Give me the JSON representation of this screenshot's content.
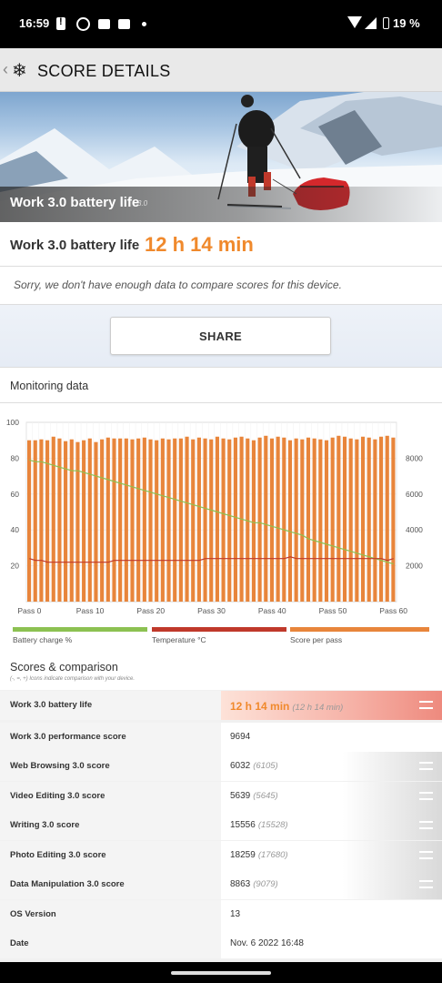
{
  "status_bar": {
    "time": "16:59",
    "battery": "19 %"
  },
  "app_bar": {
    "title": "SCORE DETAILS"
  },
  "hero": {
    "title": "Work 3.0 battery life",
    "version": "3.0"
  },
  "result": {
    "label": "Work 3.0 battery life",
    "value": "12 h 14 min"
  },
  "notice": "Sorry, we don't have enough data to compare scores for this device.",
  "share_label": "SHARE",
  "monitoring": {
    "title": "Monitoring data"
  },
  "legend": [
    {
      "label": "Battery charge %",
      "color": "#8cc152"
    },
    {
      "label": "Temperature °C",
      "color": "#c0392b"
    },
    {
      "label": "Score per pass",
      "color": "#e8853b"
    }
  ],
  "chart_data": {
    "type": "bar",
    "x_tick_labels": [
      "Pass 0",
      "Pass 10",
      "Pass 20",
      "Pass 30",
      "Pass 40",
      "Pass 50",
      "Pass 60"
    ],
    "left_axis": {
      "ticks": [
        "20",
        "40",
        "60",
        "80",
        "100"
      ],
      "range": [
        0,
        100
      ]
    },
    "right_axis": {
      "ticks": [
        "2000",
        "4000",
        "6000",
        "8000"
      ],
      "range": [
        0,
        10000
      ]
    },
    "series": [
      {
        "name": "Score per pass",
        "type": "bar",
        "axis": "right",
        "color": "#e8853b",
        "values": [
          9000,
          9000,
          9050,
          9000,
          9200,
          9100,
          8950,
          9050,
          8900,
          9000,
          9100,
          8900,
          9050,
          9150,
          9100,
          9100,
          9100,
          9050,
          9100,
          9150,
          9050,
          9000,
          9100,
          9050,
          9100,
          9100,
          9200,
          9050,
          9150,
          9100,
          9050,
          9200,
          9100,
          9050,
          9150,
          9200,
          9100,
          9000,
          9150,
          9250,
          9100,
          9200,
          9150,
          9000,
          9100,
          9050,
          9150,
          9100,
          9050,
          9000,
          9150,
          9250,
          9200,
          9100,
          9050,
          9200,
          9150,
          9050,
          9200,
          9250,
          9150
        ]
      },
      {
        "name": "Battery charge %",
        "type": "line",
        "axis": "left",
        "color": "#8cc152",
        "values": [
          79,
          78,
          78,
          77,
          76,
          75,
          74,
          73,
          73,
          72,
          71,
          70,
          69,
          68,
          67,
          66,
          65,
          64,
          63,
          62,
          61,
          60,
          59,
          58,
          57,
          56,
          55,
          54,
          53,
          52,
          51,
          50,
          49,
          48,
          47,
          46,
          45,
          44,
          44,
          43,
          42,
          41,
          40,
          39,
          38,
          37,
          35,
          34,
          33,
          32,
          31,
          30,
          29,
          28,
          27,
          26,
          25,
          24,
          23,
          22,
          21
        ]
      },
      {
        "name": "Temperature °C",
        "type": "line",
        "axis": "left",
        "color": "#c0392b",
        "values": [
          24,
          23,
          23,
          22,
          22,
          22,
          22,
          22,
          22,
          22,
          22,
          22,
          22,
          22,
          23,
          23,
          23,
          23,
          23,
          23,
          23,
          23,
          23,
          23,
          23,
          23,
          23,
          23,
          23,
          24,
          24,
          24,
          24,
          24,
          24,
          24,
          24,
          24,
          24,
          24,
          24,
          24,
          24,
          25,
          24,
          24,
          24,
          24,
          24,
          24,
          24,
          24,
          24,
          24,
          24,
          24,
          24,
          24,
          24,
          23,
          24
        ]
      }
    ]
  },
  "scores": {
    "title": "Scores & comparison",
    "note": "(-, =, +) Icons indicate comparison with your device.",
    "rows": [
      {
        "label": "Work 3.0 battery life",
        "value": "12 h 14 min",
        "compare": "(12 h 14 min)",
        "bar": 1.0,
        "icon": "equal-icon",
        "highlight": true
      },
      {
        "label": "Work 3.0 performance score",
        "value": "9694",
        "compare": "",
        "bar": 0,
        "icon": "",
        "highlight": false
      },
      {
        "label": "Web Browsing 3.0 score",
        "value": "6032",
        "compare": "(6105)",
        "bar": 1.0,
        "icon": "equal-icon",
        "highlight": false
      },
      {
        "label": "Video Editing 3.0 score",
        "value": "5639",
        "compare": "(5645)",
        "bar": 1.0,
        "icon": "equal-icon",
        "highlight": false
      },
      {
        "label": "Writing 3.0 score",
        "value": "15556",
        "compare": "(15528)",
        "bar": 1.0,
        "icon": "equal-icon",
        "highlight": false
      },
      {
        "label": "Photo Editing 3.0 score",
        "value": "18259",
        "compare": "(17680)",
        "bar": 1.0,
        "icon": "equal-icon",
        "highlight": false
      },
      {
        "label": "Data Manipulation 3.0 score",
        "value": "8863",
        "compare": "(9079)",
        "bar": 1.0,
        "icon": "equal-icon",
        "highlight": false
      },
      {
        "label": "OS Version",
        "value": "13",
        "compare": "",
        "bar": 0,
        "icon": "",
        "highlight": false
      },
      {
        "label": "Date",
        "value": "Nov. 6 2022 16:48",
        "compare": "",
        "bar": 0,
        "icon": "",
        "highlight": false
      }
    ]
  }
}
